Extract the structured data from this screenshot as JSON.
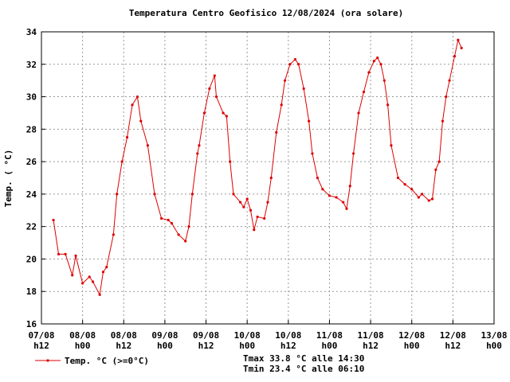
{
  "chart_data": {
    "type": "line",
    "title": "Temperatura Centro Geofisico 12/08/2024 (ora solare)",
    "y_label": "Temp. ( °C)",
    "xlim": [
      0,
      132
    ],
    "xticks": [
      {
        "value": 0,
        "label": "07/08 h12"
      },
      {
        "value": 12,
        "label": "08/08 h00"
      },
      {
        "value": 24,
        "label": "08/08 h12"
      },
      {
        "value": 36,
        "label": "09/08 h00"
      },
      {
        "value": 48,
        "label": "09/08 h12"
      },
      {
        "value": 60,
        "label": "10/08 h00"
      },
      {
        "value": 72,
        "label": "10/08 h12"
      },
      {
        "value": 84,
        "label": "11/08 h00"
      },
      {
        "value": 96,
        "label": "11/08 h12"
      },
      {
        "value": 108,
        "label": "12/08 h00"
      },
      {
        "value": 120,
        "label": "12/08 h12"
      },
      {
        "value": 132,
        "label": "13/08 h00"
      }
    ],
    "ylim": [
      16,
      34
    ],
    "yticks": [
      16,
      18,
      20,
      22,
      24,
      26,
      28,
      30,
      32,
      34
    ],
    "grid": true,
    "series": [
      {
        "name": "Temp. °C (>=0°C)",
        "color": "#dd0000",
        "x": [
          3.5,
          5,
          7,
          9,
          10,
          12,
          14,
          15,
          17,
          18,
          19,
          21,
          22,
          23.5,
          25,
          26.5,
          28,
          29,
          31,
          33,
          35,
          37,
          38,
          40,
          42,
          43,
          44,
          45.5,
          46,
          47.5,
          49,
          50.5,
          51,
          53,
          54,
          55,
          56,
          58,
          59,
          60,
          61,
          62,
          63,
          65,
          66,
          67,
          68.5,
          70,
          71,
          72.5,
          74,
          75,
          76.5,
          78,
          79,
          80.5,
          82,
          84,
          86,
          88,
          89,
          90,
          91,
          92.5,
          94,
          95.5,
          97,
          98,
          99,
          100,
          101,
          102,
          104,
          106,
          108,
          110,
          111,
          113,
          114,
          115,
          116,
          117,
          118,
          119,
          120.5,
          121.5,
          122.5
        ],
        "values": [
          22.4,
          20.3,
          20.3,
          19,
          20.2,
          18.5,
          18.9,
          18.6,
          17.8,
          19.2,
          19.5,
          21.5,
          24,
          26,
          27.5,
          29.5,
          30,
          28.5,
          27,
          24,
          22.5,
          22.4,
          22.2,
          21.5,
          21.1,
          22,
          24,
          26.5,
          27,
          29,
          30.5,
          31.3,
          30,
          29,
          28.8,
          26,
          24,
          23.5,
          23.2,
          23.7,
          23,
          21.8,
          22.6,
          22.5,
          23.5,
          25,
          27.8,
          29.5,
          31,
          32,
          32.3,
          32,
          30.5,
          28.5,
          26.5,
          25,
          24.3,
          23.9,
          23.8,
          23.5,
          23.1,
          24.5,
          26.5,
          29,
          30.3,
          31.5,
          32.2,
          32.4,
          32,
          31,
          29.5,
          27,
          25,
          24.6,
          24.3,
          23.8,
          24,
          23.6,
          23.7,
          25.5,
          26,
          28.5,
          30,
          31,
          32.5,
          33.5,
          33
        ]
      }
    ],
    "annotations": [
      "Tmax 33.8 °C alle 14:30",
      "Tmin 23.4 °C alle 06:10"
    ]
  }
}
